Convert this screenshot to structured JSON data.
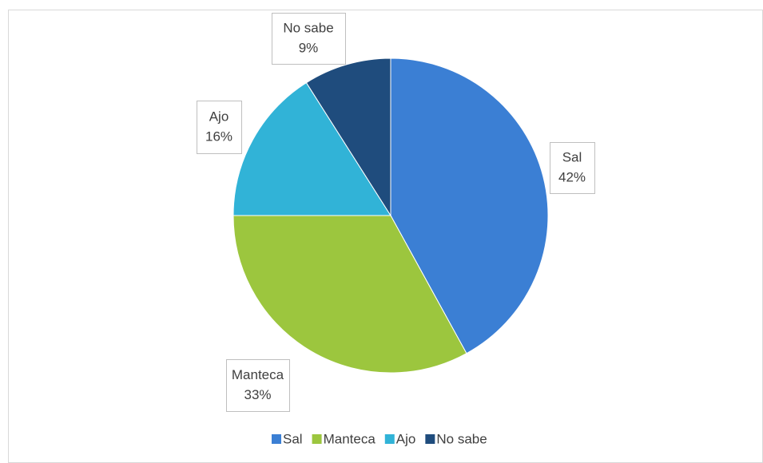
{
  "chart_data": {
    "type": "pie",
    "categories": [
      "Sal",
      "Manteca",
      "Ajo",
      "No sabe"
    ],
    "values": [
      42,
      33,
      16,
      9
    ],
    "value_labels": [
      "42%",
      "33%",
      "16%",
      "9%"
    ],
    "colors": [
      "#3b7fd4",
      "#9cc63e",
      "#31b3d7",
      "#1f4c7d"
    ],
    "legend": "bottom"
  }
}
